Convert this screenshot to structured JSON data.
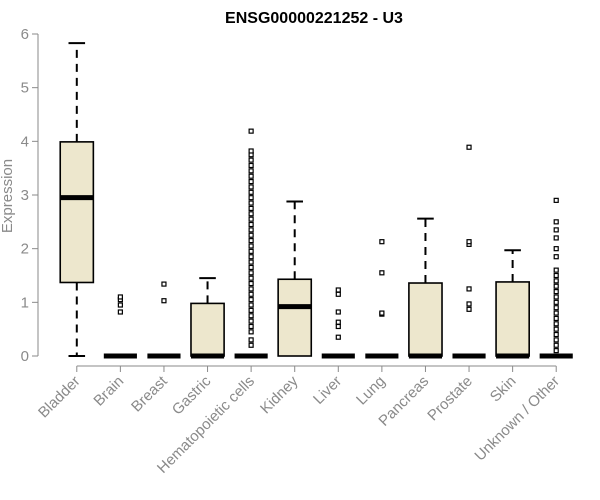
{
  "chart_data": {
    "type": "box",
    "title": "ENSG00000221252 - U3",
    "xlabel": "",
    "ylabel": "Expression",
    "ylim": [
      0,
      6
    ],
    "yticks": [
      "0",
      "1",
      "2",
      "3",
      "4",
      "5",
      "6"
    ],
    "grid": false,
    "legend": "none",
    "colors": {
      "box_fill": "#ede7cd",
      "stroke": "#000000",
      "axis_text": "#8a8a8a"
    },
    "categories": [
      "Bladder",
      "Brain",
      "Breast",
      "Gastric",
      "Hematopoietic cells",
      "Kidney",
      "Liver",
      "Lung",
      "Pancreas",
      "Prostate",
      "Skin",
      "Unknown / Other"
    ],
    "boxes": [
      {
        "q1": 1.37,
        "median": 2.95,
        "q3": 3.99,
        "whisker_low": 0,
        "whisker_high": 5.83,
        "outliers": []
      },
      {
        "q1": 0,
        "median": 0,
        "q3": 0,
        "whisker_low": 0,
        "whisker_high": 0,
        "outliers": [
          0.82,
          0.95,
          1.05,
          1.1
        ]
      },
      {
        "q1": 0,
        "median": 0,
        "q3": 0,
        "whisker_low": 0,
        "whisker_high": 0,
        "outliers": [
          1.03,
          1.34
        ]
      },
      {
        "q1": 0,
        "median": 0,
        "q3": 0.98,
        "whisker_low": 0,
        "whisker_high": 1.45,
        "outliers": []
      },
      {
        "q1": 0,
        "median": 0,
        "q3": 0,
        "whisker_low": 0,
        "whisker_high": 0,
        "outliers": [
          0.2,
          0.3,
          0.45,
          0.55,
          0.65,
          0.75,
          0.85,
          0.95,
          1.05,
          1.15,
          1.25,
          1.35,
          1.45,
          1.55,
          1.65,
          1.75,
          1.85,
          1.95,
          2.05,
          2.15,
          2.25,
          2.35,
          2.45,
          2.55,
          2.65,
          2.75,
          2.85,
          2.95,
          3.05,
          3.15,
          3.25,
          3.35,
          3.45,
          3.55,
          3.65,
          3.75,
          3.82,
          4.19
        ]
      },
      {
        "q1": 0,
        "median": 0.92,
        "q3": 1.43,
        "whisker_low": 0,
        "whisker_high": 2.88,
        "outliers": []
      },
      {
        "q1": 0,
        "median": 0,
        "q3": 0,
        "whisker_low": 0,
        "whisker_high": 0,
        "outliers": [
          0.35,
          0.55,
          0.63,
          0.82,
          1.15,
          1.23
        ]
      },
      {
        "q1": 0,
        "median": 0,
        "q3": 0,
        "whisker_low": 0,
        "whisker_high": 0,
        "outliers": [
          0.78,
          0.8,
          1.55,
          2.13
        ]
      },
      {
        "q1": 0,
        "median": 0,
        "q3": 1.36,
        "whisker_low": 0,
        "whisker_high": 2.56,
        "outliers": []
      },
      {
        "q1": 0,
        "median": 0,
        "q3": 0,
        "whisker_low": 0,
        "whisker_high": 0,
        "outliers": [
          0.87,
          0.97,
          1.25,
          2.08,
          2.13,
          3.89
        ]
      },
      {
        "q1": 0,
        "median": 0,
        "q3": 1.38,
        "whisker_low": 0,
        "whisker_high": 1.97,
        "outliers": []
      },
      {
        "q1": 0,
        "median": 0,
        "q3": 0,
        "whisker_low": 0,
        "whisker_high": 0,
        "outliers": [
          0.1,
          0.2,
          0.3,
          0.4,
          0.5,
          0.6,
          0.7,
          0.8,
          0.9,
          1.0,
          1.1,
          1.2,
          1.3,
          1.4,
          1.5,
          1.6,
          1.85,
          2.0,
          2.2,
          2.35,
          2.5,
          2.9
        ]
      }
    ]
  }
}
